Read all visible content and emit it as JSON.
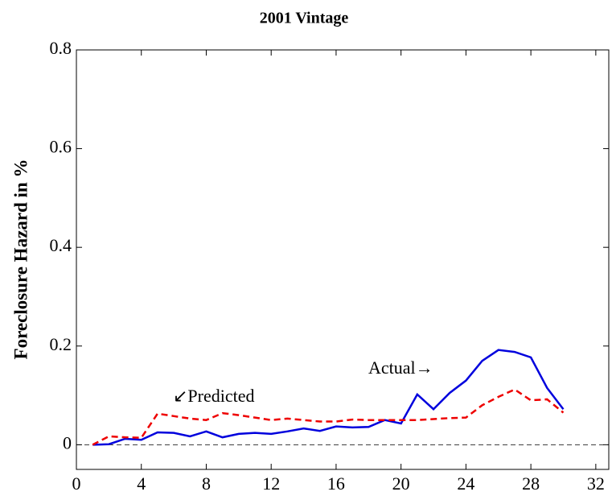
{
  "chart_data": {
    "type": "line",
    "title": "2001 Vintage",
    "ylabel": "Foreclosure Hazard in %",
    "x": [
      1,
      2,
      3,
      4,
      5,
      6,
      7,
      8,
      9,
      10,
      11,
      12,
      13,
      14,
      15,
      16,
      17,
      18,
      19,
      20,
      21,
      22,
      23,
      24,
      25,
      26,
      27,
      28,
      29,
      30
    ],
    "series": [
      {
        "name": "Actual",
        "color": "#0000dd",
        "dash": false,
        "values": [
          0,
          0.001,
          0.012,
          0.01,
          0.025,
          0.024,
          0.017,
          0.027,
          0.015,
          0.022,
          0.024,
          0.022,
          0.027,
          0.033,
          0.028,
          0.037,
          0.035,
          0.036,
          0.05,
          0.043,
          0.102,
          0.072,
          0.105,
          0.13,
          0.17,
          0.192,
          0.188,
          0.177,
          0.115,
          0.072
        ]
      },
      {
        "name": "Predicted",
        "color": "#ee0000",
        "dash": true,
        "values": [
          0,
          0.017,
          0.015,
          0.014,
          0.063,
          0.058,
          0.053,
          0.05,
          0.064,
          0.06,
          0.055,
          0.05,
          0.053,
          0.05,
          0.047,
          0.047,
          0.051,
          0.05,
          0.05,
          0.05,
          0.05,
          0.052,
          0.054,
          0.055,
          0.08,
          0.097,
          0.112,
          0.09,
          0.092,
          0.065
        ]
      }
    ],
    "annotations": [
      "Actual→",
      "↙Predicted"
    ],
    "xlim": [
      0,
      32.8
    ],
    "ylim": [
      -0.05,
      0.8
    ],
    "xticks": [
      0,
      4,
      8,
      12,
      16,
      20,
      24,
      28,
      32
    ],
    "yticks": [
      0,
      0.2,
      0.4,
      0.6,
      0.8
    ]
  }
}
